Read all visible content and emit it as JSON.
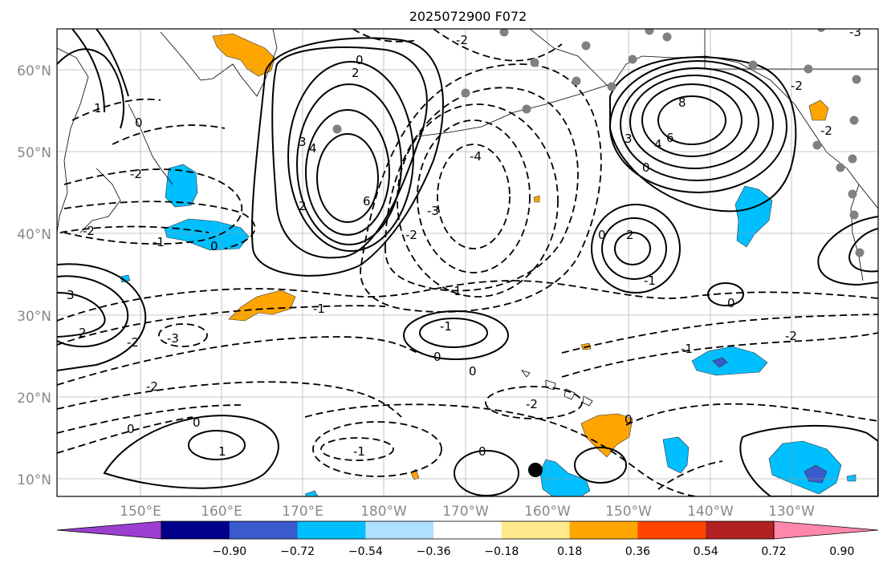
{
  "title": "2025072900 F072",
  "map": {
    "lat_labels": [
      "60°N",
      "50°N",
      "40°N",
      "30°N",
      "20°N",
      "10°N"
    ],
    "lon_labels": [
      "150°E",
      "160°E",
      "170°E",
      "180°W",
      "170°W",
      "160°W",
      "150°W",
      "140°W",
      "130°W"
    ],
    "grid": true,
    "contour_labels": [
      "-2",
      "-1",
      "0",
      "2",
      "-2",
      "0",
      "2",
      "3",
      "4",
      "6",
      "-4",
      "-3",
      "-2",
      "-1",
      "8",
      "6",
      "4",
      "3",
      "0",
      "-2",
      "0",
      "-1",
      "-2",
      "-3",
      "-2",
      "0",
      "1",
      "2",
      "0",
      "-1",
      "3",
      "2",
      "-3",
      "-2",
      "-2",
      "0",
      "-1",
      "-2",
      "-1",
      "0",
      "0",
      "1",
      "-1",
      "0",
      "0",
      "-2",
      "0"
    ],
    "shading_colors": [
      "#9b3fd0",
      "#00008b",
      "#3a5bcc",
      "#00bfff",
      "#b0e0ff",
      "#ffffff",
      "#ffe98a",
      "#ffa500",
      "#ff4500",
      "#b22222",
      "#ff88aa"
    ]
  },
  "colorbar": {
    "ticks": [
      "−0.90",
      "−0.72",
      "−0.54",
      "−0.36",
      "−0.18",
      "0.18",
      "0.36",
      "0.54",
      "0.72",
      "0.90"
    ],
    "colors": [
      "#9b3fd0",
      "#00008b",
      "#3a5bcc",
      "#00bfff",
      "#b0e0ff",
      "#ffffff",
      "#ffe98a",
      "#ffa500",
      "#ff4500",
      "#b22222",
      "#ff88aa"
    ]
  }
}
